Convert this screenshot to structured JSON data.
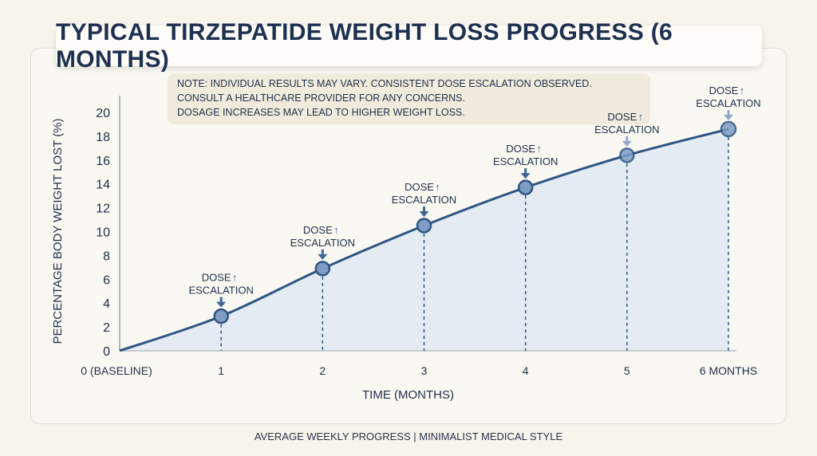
{
  "chart_data": {
    "type": "area",
    "title": "TYPICAL TIRZEPATIDE WEIGHT LOSS PROGRESS (6 MONTHS)",
    "xlabel": "TIME (MONTHS)",
    "ylabel": "PERCENTAGE BODY WEIGHT LOST (%)",
    "x_tick_labels": [
      "0 (BASELINE)",
      "1",
      "2",
      "3",
      "4",
      "5",
      "6 MONTHS"
    ],
    "y_ticks": [
      0,
      2,
      4,
      6,
      8,
      10,
      12,
      14,
      16,
      18,
      20
    ],
    "ylim": [
      0,
      20
    ],
    "xlim": [
      0,
      6
    ],
    "grid": false,
    "x": [
      0,
      1,
      2,
      3,
      4,
      5,
      6
    ],
    "values": [
      0,
      2.9,
      6.9,
      10.5,
      13.7,
      16.4,
      18.6
    ],
    "annotations": [
      {
        "x": 1,
        "line1": "DOSE",
        "arrow": "↑",
        "line2": "ESCALATION"
      },
      {
        "x": 2,
        "line1": "DOSE",
        "arrow": "↑",
        "line2": "ESCALATION"
      },
      {
        "x": 3,
        "line1": "DOSE",
        "arrow": "↑",
        "line2": "ESCALATION"
      },
      {
        "x": 4,
        "line1": "DOSE",
        "arrow": "↑",
        "line2": "ESCALATION"
      },
      {
        "x": 5,
        "line1": "DOSE",
        "arrow": "↑",
        "line2": "ESCALATION"
      },
      {
        "x": 6,
        "line1": "DOSE",
        "arrow": "↑",
        "line2": "ESCALATION"
      }
    ],
    "colors": {
      "line": "#2f5583",
      "fill": "#dfe7f2",
      "marker": "#7e9cc4",
      "arrow": "#3d6596",
      "title": "#1e3050"
    }
  },
  "note": [
    "NOTE: INDIVIDUAL RESULTS MAY VARY. CONSISTENT DOSE ESCALATION OBSERVED.",
    "CONSULT A HEALTHCARE PROVIDER FOR ANY CONCERNS.",
    "DOSAGE INCREASES MAY LEAD TO HIGHER WEIGHT LOSS."
  ],
  "footer": "AVERAGE WEEKLY PROGRESS | MINIMALIST MEDICAL STYLE"
}
